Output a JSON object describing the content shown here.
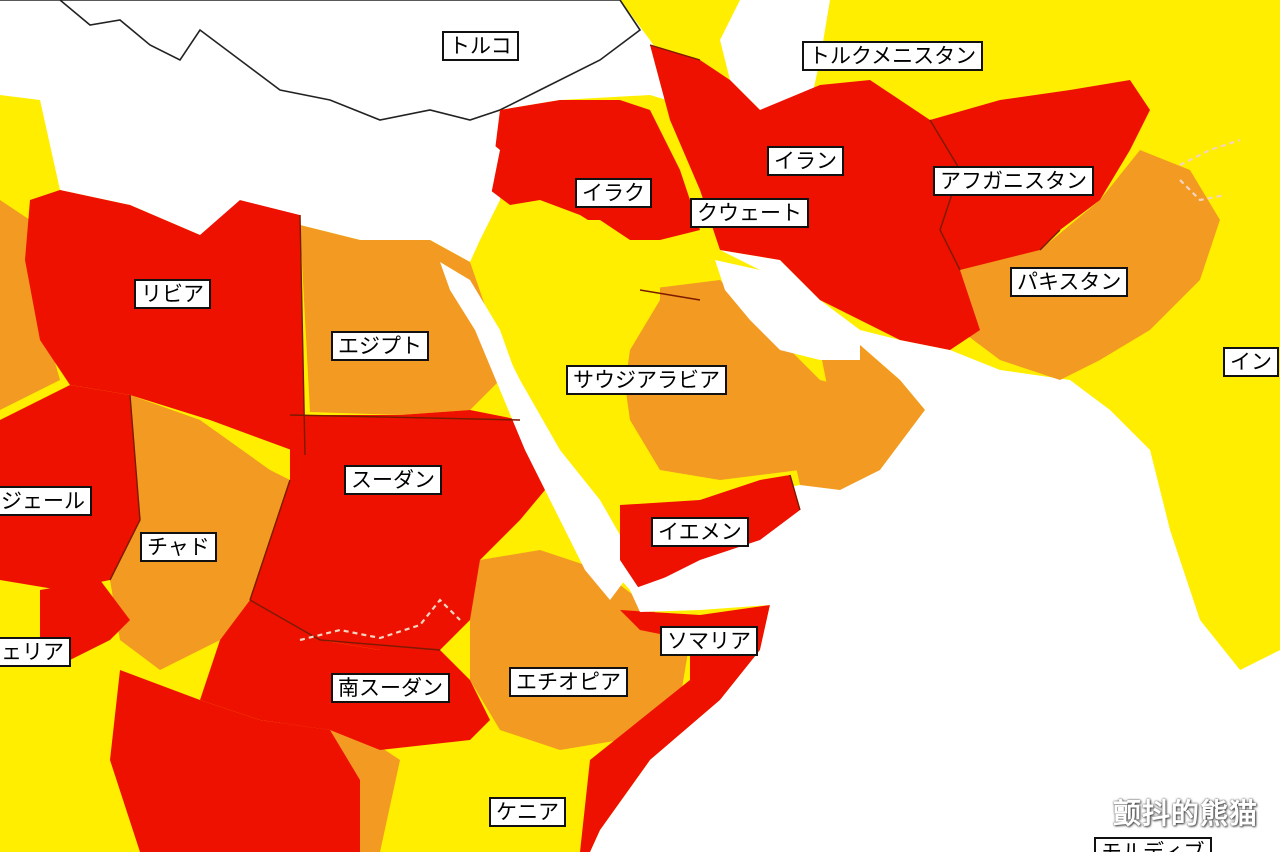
{
  "colors": {
    "sea": "#ffffff",
    "level_4_red": "#ee1100",
    "level_3_orange": "#f39a22",
    "level_2_yellow": "#ffee00",
    "neutral_land": "#ffffff"
  },
  "labels": {
    "turkey": "トルコ",
    "turkmenistan": "トルクメニスタン",
    "iran": "イラン",
    "afghanistan": "アフガニスタン",
    "iraq": "イラク",
    "kuwait": "クウェート",
    "pakistan": "パキスタン",
    "libya": "リビア",
    "egypt": "エジプト",
    "saudi_arabia": "サウジアラビア",
    "india": "イン",
    "sudan": "スーダン",
    "niger": "ジェール",
    "chad": "チャド",
    "yemen": "イエメン",
    "somalia": "ソマリア",
    "nigeria": "ェリア",
    "south_sudan": "南スーダン",
    "ethiopia": "エチオピア",
    "kenya": "ケニア",
    "maldives": "モルディブ"
  },
  "watermark": "颤抖的熊猫"
}
